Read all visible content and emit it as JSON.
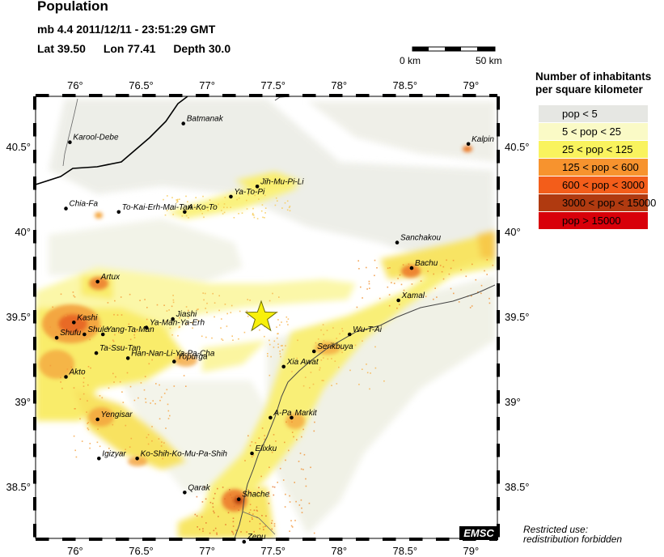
{
  "header": {
    "title": "Population",
    "event": "mb 4.4  2011/12/11 - 23:51:29 GMT",
    "lat": "Lat 39.50",
    "lon": "Lon  77.41",
    "depth": "Depth  30.0"
  },
  "scalebar": {
    "label_start": "0 km",
    "label_end": "50 km"
  },
  "map": {
    "lon_range": [
      75.7,
      79.2
    ],
    "lat_range": [
      38.2,
      40.8
    ],
    "lon_ticks": [
      {
        "value": 76.0,
        "label": "76°"
      },
      {
        "value": 76.5,
        "label": "76.5°"
      },
      {
        "value": 77.0,
        "label": "77°"
      },
      {
        "value": 77.5,
        "label": "77.5°"
      },
      {
        "value": 78.0,
        "label": "78°"
      },
      {
        "value": 78.5,
        "label": "78.5°"
      },
      {
        "value": 79.0,
        "label": "79°"
      }
    ],
    "lat_ticks": [
      {
        "value": 38.5,
        "label": "38.5°"
      },
      {
        "value": 39.0,
        "label": "39°"
      },
      {
        "value": 39.5,
        "label": "39.5°"
      },
      {
        "value": 40.0,
        "label": "40°"
      },
      {
        "value": 40.5,
        "label": "40.5°"
      }
    ],
    "epicenter": {
      "lon": 77.41,
      "lat": 39.5
    },
    "cities": [
      {
        "name": "Batmanak",
        "lon": 76.82,
        "lat": 40.64
      },
      {
        "name": "Karool-Debe",
        "lon": 75.96,
        "lat": 40.53
      },
      {
        "name": "Kalpin",
        "lon": 78.98,
        "lat": 40.52
      },
      {
        "name": "Jih-Mu-Pi-Li",
        "lon": 77.38,
        "lat": 40.27
      },
      {
        "name": "Ya-To-Pi",
        "lon": 77.18,
        "lat": 40.21
      },
      {
        "name": "Chia-Fa",
        "lon": 75.93,
        "lat": 40.14
      },
      {
        "name": "To-Kai-Erh-Mai-Tan",
        "lon": 76.33,
        "lat": 40.12
      },
      {
        "name": "A-Ko-To",
        "lon": 76.83,
        "lat": 40.12
      },
      {
        "name": "Sanchakou",
        "lon": 78.44,
        "lat": 39.94
      },
      {
        "name": "Bachu",
        "lon": 78.55,
        "lat": 39.79
      },
      {
        "name": "Artux",
        "lon": 76.17,
        "lat": 39.71
      },
      {
        "name": "Xamal",
        "lon": 78.45,
        "lat": 39.6
      },
      {
        "name": "Jiashi",
        "lon": 76.74,
        "lat": 39.49
      },
      {
        "name": "Kashi",
        "lon": 75.99,
        "lat": 39.47
      },
      {
        "name": "Ya-Man-Ya-Erh",
        "lon": 76.54,
        "lat": 39.44
      },
      {
        "name": "Shule",
        "lon": 76.07,
        "lat": 39.4
      },
      {
        "name": "Yang-Ta-Man",
        "lon": 76.21,
        "lat": 39.4
      },
      {
        "name": "Wu-T-Ai",
        "lon": 78.08,
        "lat": 39.4
      },
      {
        "name": "Shufu",
        "lon": 75.86,
        "lat": 39.38
      },
      {
        "name": "Serikbuya",
        "lon": 77.81,
        "lat": 39.3
      },
      {
        "name": "Ta-Ssu-Tan",
        "lon": 76.16,
        "lat": 39.29
      },
      {
        "name": "Han-Nan-Li-Ya-Pa-Cha",
        "lon": 76.4,
        "lat": 39.26
      },
      {
        "name": "Yopurga",
        "lon": 76.75,
        "lat": 39.24
      },
      {
        "name": "Xia Awat",
        "lon": 77.58,
        "lat": 39.21
      },
      {
        "name": "Akto",
        "lon": 75.93,
        "lat": 39.15
      },
      {
        "name": "A-Pa",
        "lon": 77.48,
        "lat": 38.91
      },
      {
        "name": "Markit",
        "lon": 77.64,
        "lat": 38.91
      },
      {
        "name": "Yengisar",
        "lon": 76.17,
        "lat": 38.9
      },
      {
        "name": "Elixku",
        "lon": 77.34,
        "lat": 38.7
      },
      {
        "name": "Igizyar",
        "lon": 76.18,
        "lat": 38.67
      },
      {
        "name": "Ko-Shih-Ko-Mu-Pa-Shih",
        "lon": 76.47,
        "lat": 38.67
      },
      {
        "name": "Qarak",
        "lon": 76.83,
        "lat": 38.47
      },
      {
        "name": "Shache",
        "lon": 77.24,
        "lat": 38.43
      },
      {
        "name": "Zepu",
        "lon": 77.28,
        "lat": 38.18
      }
    ]
  },
  "legend": {
    "title_line1": "Number of inhabitants",
    "title_line2": "per square kilometer",
    "items": [
      {
        "label": "pop < 5",
        "color": "#e6e7e3"
      },
      {
        "label": "5 < pop < 25",
        "color": "#fafac6"
      },
      {
        "label": "25 < pop < 125",
        "color": "#f9f35e"
      },
      {
        "label": "125 < pop < 600",
        "color": "#f7932e"
      },
      {
        "label": "600 < pop < 3000",
        "color": "#f35d1a"
      },
      {
        "label": "3000 < pop < 15000",
        "color": "#b03a10"
      },
      {
        "label": "pop > 15000",
        "color": "#d8000a"
      }
    ]
  },
  "logo": "EMSC",
  "footer": {
    "line1": "Restricted use:",
    "line2": "redistribution forbidden"
  }
}
